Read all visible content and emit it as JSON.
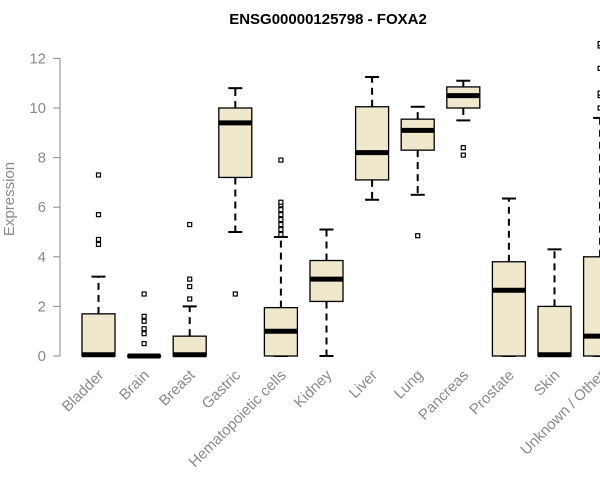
{
  "chart_data": {
    "type": "boxplot",
    "title": "ENSG00000125798 - FOXA2",
    "ylabel": "Expression",
    "xlabel": "",
    "ylim": [
      0,
      12.5
    ],
    "yticks": [
      0,
      2,
      4,
      6,
      8,
      10,
      12
    ],
    "grid": false,
    "colors": {
      "box_fill": "#efe8cd",
      "stroke": "#000000",
      "axis_text": "#8a8a8a"
    },
    "categories": [
      "Bladder",
      "Brain",
      "Breast",
      "Gastric",
      "Hematopoietic cells",
      "Kidney",
      "Liver",
      "Lung",
      "Pancreas",
      "Prostate",
      "Skin",
      "Unknown / Other"
    ],
    "boxes": [
      {
        "category": "Bladder",
        "whisker_low": 0,
        "q1": 0,
        "median": 0.05,
        "q3": 1.7,
        "whisker_high": 3.2,
        "outliers": [
          4.5,
          4.7,
          5.7,
          7.3
        ]
      },
      {
        "category": "Brain",
        "whisker_low": 0,
        "q1": 0,
        "median": 0,
        "q3": 0,
        "whisker_high": 0,
        "outliers": [
          0.5,
          0.9,
          1.1,
          1.4,
          1.6,
          2.5
        ]
      },
      {
        "category": "Breast",
        "whisker_low": 0,
        "q1": 0,
        "median": 0.05,
        "q3": 0.8,
        "whisker_high": 2.0,
        "outliers": [
          2.3,
          2.8,
          3.1,
          5.3
        ]
      },
      {
        "category": "Gastric",
        "whisker_low": 5.0,
        "q1": 7.2,
        "median": 9.4,
        "q3": 10.0,
        "whisker_high": 10.8,
        "outliers": [
          2.5
        ]
      },
      {
        "category": "Hematopoietic cells",
        "whisker_low": 0,
        "q1": 0,
        "median": 1.0,
        "q3": 1.95,
        "whisker_high": 4.8,
        "outliers": [
          4.9,
          5.1,
          5.3,
          5.5,
          5.7,
          5.9,
          6.1,
          6.2,
          7.9
        ]
      },
      {
        "category": "Kidney",
        "whisker_low": 0,
        "q1": 2.2,
        "median": 3.1,
        "q3": 3.85,
        "whisker_high": 5.1,
        "outliers": []
      },
      {
        "category": "Liver",
        "whisker_low": 6.3,
        "q1": 7.1,
        "median": 8.2,
        "q3": 10.05,
        "whisker_high": 11.25,
        "outliers": []
      },
      {
        "category": "Lung",
        "whisker_low": 6.5,
        "q1": 8.3,
        "median": 9.1,
        "q3": 9.55,
        "whisker_high": 10.05,
        "outliers": [
          4.85
        ]
      },
      {
        "category": "Pancreas",
        "whisker_low": 9.5,
        "q1": 10.0,
        "median": 10.5,
        "q3": 10.85,
        "whisker_high": 11.1,
        "outliers": [
          8.1,
          8.4
        ]
      },
      {
        "category": "Prostate",
        "whisker_low": 0,
        "q1": 0,
        "median": 2.65,
        "q3": 3.8,
        "whisker_high": 6.35,
        "outliers": []
      },
      {
        "category": "Skin",
        "whisker_low": 0,
        "q1": 0,
        "median": 0.05,
        "q3": 2.0,
        "whisker_high": 4.3,
        "outliers": []
      },
      {
        "category": "Unknown / Other",
        "whisker_low": 0,
        "q1": 0,
        "median": 0.8,
        "q3": 4.0,
        "whisker_high": 9.6,
        "outliers": [
          10.0,
          10.5,
          10.6,
          11.6,
          12.5,
          12.6
        ]
      }
    ]
  }
}
